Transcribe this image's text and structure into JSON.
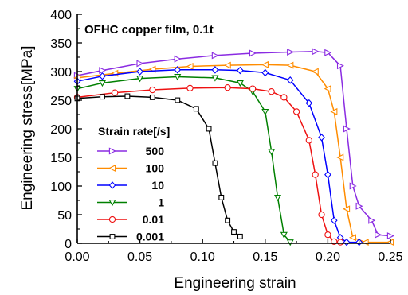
{
  "chart_data": {
    "type": "line",
    "title": "",
    "annotation": "OFHC copper film, 0.1t",
    "xlabel": "Engineering strain",
    "ylabel": "Engineering stress[MPa]",
    "xlim": [
      0.0,
      0.25
    ],
    "ylim": [
      0,
      400
    ],
    "xticks": [
      "0.00",
      "0.05",
      "0.10",
      "0.15",
      "0.20",
      "0.25"
    ],
    "yticks": [
      "0",
      "50",
      "100",
      "150",
      "200",
      "250",
      "300",
      "350",
      "400"
    ],
    "grid": false,
    "legend_title": "Strain rate[/s]",
    "legend_position": "center-left",
    "series": [
      {
        "name": "500",
        "color": "#8a2be2",
        "marker": "triangle-right",
        "x": [
          0.0,
          0.02,
          0.05,
          0.08,
          0.11,
          0.14,
          0.17,
          0.19,
          0.2,
          0.21,
          0.215,
          0.22,
          0.225,
          0.235,
          0.24,
          0.25
        ],
        "y": [
          293,
          302,
          314,
          322,
          328,
          332,
          334,
          335,
          333,
          310,
          200,
          100,
          65,
          40,
          15,
          13
        ]
      },
      {
        "name": "100",
        "color": "#ff8c00",
        "marker": "triangle-left",
        "x": [
          0.0,
          0.03,
          0.06,
          0.09,
          0.12,
          0.15,
          0.17,
          0.19,
          0.2,
          0.205,
          0.21,
          0.215,
          0.22,
          0.23,
          0.25
        ],
        "y": [
          289,
          297,
          304,
          309,
          311,
          312,
          311,
          300,
          270,
          230,
          150,
          60,
          10,
          2,
          2
        ]
      },
      {
        "name": "10",
        "color": "#0000ff",
        "marker": "diamond",
        "x": [
          0.0,
          0.02,
          0.05,
          0.08,
          0.11,
          0.13,
          0.15,
          0.17,
          0.185,
          0.195,
          0.2,
          0.205,
          0.21,
          0.215,
          0.225
        ],
        "y": [
          283,
          292,
          300,
          303,
          303,
          302,
          298,
          285,
          245,
          185,
          120,
          40,
          10,
          2,
          2
        ]
      },
      {
        "name": "1",
        "color": "#008000",
        "marker": "triangle-down",
        "x": [
          0.0,
          0.02,
          0.05,
          0.08,
          0.11,
          0.13,
          0.14,
          0.15,
          0.155,
          0.16,
          0.165,
          0.17
        ],
        "y": [
          270,
          280,
          288,
          291,
          289,
          280,
          265,
          230,
          160,
          80,
          15,
          2
        ]
      },
      {
        "name": "0.01",
        "color": "#ee1111",
        "marker": "circle",
        "x": [
          0.0,
          0.03,
          0.06,
          0.09,
          0.12,
          0.14,
          0.155,
          0.165,
          0.175,
          0.185,
          0.19,
          0.195,
          0.2,
          0.205,
          0.21
        ],
        "y": [
          255,
          263,
          268,
          271,
          272,
          270,
          265,
          255,
          230,
          180,
          120,
          50,
          15,
          3,
          2
        ]
      },
      {
        "name": "0.001",
        "color": "#000000",
        "marker": "square",
        "x": [
          0.0,
          0.02,
          0.04,
          0.06,
          0.08,
          0.095,
          0.105,
          0.11,
          0.115,
          0.12,
          0.125,
          0.13
        ],
        "y": [
          253,
          256,
          257,
          255,
          250,
          235,
          200,
          140,
          80,
          40,
          20,
          12
        ]
      }
    ]
  }
}
